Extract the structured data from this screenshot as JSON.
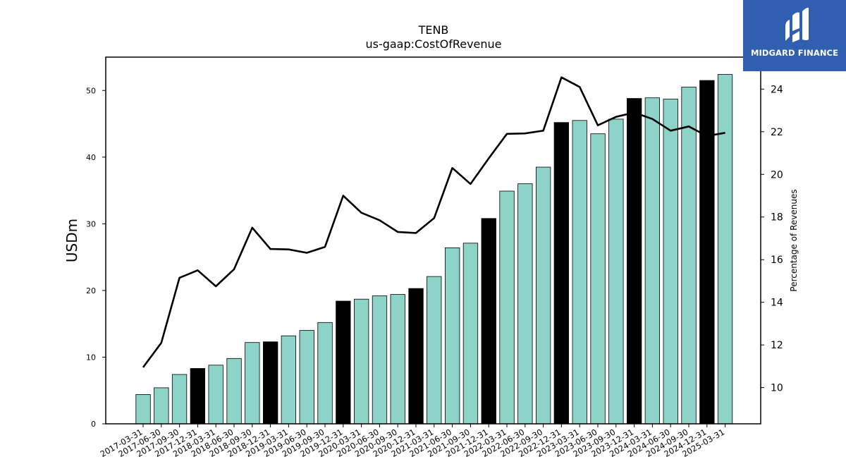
{
  "chart_data": {
    "type": "bar",
    "title": "TENB",
    "subtitle": "us-gaap:CostOfRevenue",
    "ylabel": "USDm",
    "y2label": "Percentage of Revenues",
    "ylim": [
      0,
      55
    ],
    "y2lim": [
      8.3,
      25.5
    ],
    "yticks": [
      0,
      10,
      20,
      30,
      40,
      50
    ],
    "y2ticks": [
      10,
      12,
      14,
      16,
      18,
      20,
      22,
      24
    ],
    "categories": [
      "2017-03-31",
      "2017-06-30",
      "2017-09-30",
      "2017-12-31",
      "2018-03-31",
      "2018-06-30",
      "2018-09-30",
      "2018-12-31",
      "2019-03-31",
      "2019-06-30",
      "2019-09-30",
      "2019-12-31",
      "2020-03-31",
      "2020-06-30",
      "2020-09-30",
      "2020-12-31",
      "2021-03-31",
      "2021-06-30",
      "2021-09-30",
      "2021-12-31",
      "2022-03-31",
      "2022-06-30",
      "2022-09-30",
      "2022-12-31",
      "2023-03-31",
      "2023-06-30",
      "2023-09-30",
      "2023-12-31",
      "2024-03-31",
      "2024-06-30",
      "2024-09-30",
      "2024-12-31",
      "2025-03-31"
    ],
    "series": [
      {
        "kind": "bar",
        "values": [
          4.4,
          5.4,
          7.4,
          8.3,
          8.8,
          9.8,
          12.2,
          12.3,
          13.2,
          14.0,
          15.2,
          18.4,
          18.7,
          19.2,
          19.4,
          20.3,
          22.1,
          26.4,
          27.1,
          30.8,
          34.9,
          36.0,
          38.5,
          45.2,
          45.5,
          43.5,
          45.7,
          48.8,
          48.9,
          48.7,
          50.5,
          51.5,
          52.4
        ],
        "highlight": [
          false,
          false,
          false,
          true,
          false,
          false,
          false,
          true,
          false,
          false,
          false,
          true,
          false,
          false,
          false,
          true,
          false,
          false,
          false,
          true,
          false,
          false,
          false,
          true,
          false,
          false,
          false,
          true,
          false,
          false,
          false,
          true,
          false
        ]
      },
      {
        "kind": "line",
        "axis": "right",
        "values": [
          10.95,
          12.1,
          15.15,
          15.5,
          14.75,
          15.55,
          17.5,
          16.5,
          16.48,
          16.32,
          16.6,
          19.0,
          18.2,
          17.85,
          17.3,
          17.25,
          17.95,
          20.3,
          19.55,
          20.75,
          21.9,
          21.92,
          22.05,
          24.55,
          24.1,
          22.3,
          22.7,
          22.9,
          22.6,
          22.05,
          22.25,
          21.8,
          21.95
        ]
      }
    ],
    "colors": {
      "bar": "#8dd3c7",
      "bar_highlight": "#000000",
      "line": "#000000"
    },
    "grid": false
  },
  "logo": {
    "text": "MIDGARD FINANCE",
    "bg": "#2f5fae",
    "icon": "midgard-logo-icon"
  }
}
